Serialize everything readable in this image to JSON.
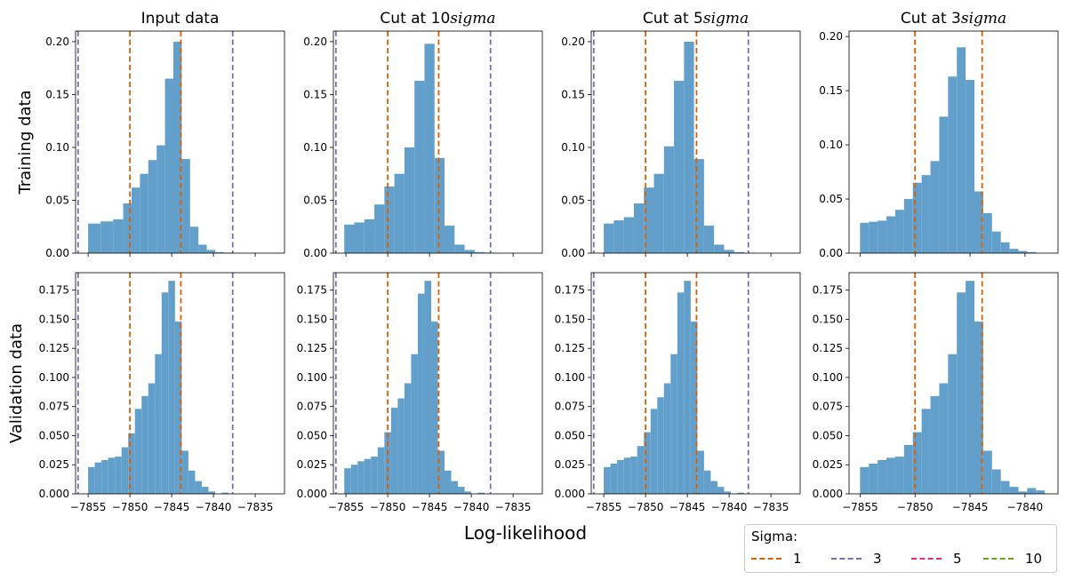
{
  "figure": {
    "row_labels": [
      "Training data",
      "Validation data"
    ],
    "xlabel": "Log-likelihood",
    "legend": {
      "title": "Sigma:",
      "entries": [
        {
          "label": "1",
          "color": "#d95f02"
        },
        {
          "label": "3",
          "color": "#7570b3"
        },
        {
          "label": "5",
          "color": "#e7298a"
        },
        {
          "label": "10",
          "color": "#66a61e"
        }
      ]
    },
    "bar_color": "#62a0cb"
  },
  "chart_data": [
    {
      "type": "bar",
      "panel_title": "Input data",
      "row": "Training data",
      "xlim": [
        -7856.5,
        -7831.5
      ],
      "ylim": [
        0,
        0.21
      ],
      "yticks": [
        0.0,
        0.05,
        0.1,
        0.15,
        0.2
      ],
      "xticks": [],
      "bin_edges": [
        -7855.0,
        -7853.5,
        -7852.0,
        -7850.8,
        -7849.8,
        -7848.8,
        -7847.8,
        -7846.8,
        -7845.8,
        -7844.8,
        -7843.8,
        -7842.8,
        -7841.8,
        -7840.8,
        -7839.8,
        -7838.8,
        -7837.8
      ],
      "values": [
        0.028,
        0.03,
        0.032,
        0.047,
        0.062,
        0.075,
        0.088,
        0.102,
        0.165,
        0.2,
        0.089,
        0.025,
        0.008,
        0.003,
        0.001,
        0.0005
      ],
      "vlines": [
        {
          "x": -7856.2,
          "sigma": "3"
        },
        {
          "x": -7850.0,
          "sigma": "1"
        },
        {
          "x": -7843.9,
          "sigma": "1"
        },
        {
          "x": -7837.7,
          "sigma": "3"
        }
      ]
    },
    {
      "type": "bar",
      "panel_title": "Cut at 10$sigma$",
      "row": "Training data",
      "xlim": [
        -7856.5,
        -7831.5
      ],
      "ylim": [
        0,
        0.21
      ],
      "yticks": [
        0.0,
        0.05,
        0.1,
        0.15,
        0.2
      ],
      "xticks": [],
      "bin_edges": [
        -7855.2,
        -7854.0,
        -7852.8,
        -7851.6,
        -7850.4,
        -7849.2,
        -7848.0,
        -7846.8,
        -7845.6,
        -7844.4,
        -7843.2,
        -7842.0,
        -7840.8,
        -7839.6,
        -7838.4,
        -7837.2
      ],
      "values": [
        0.027,
        0.029,
        0.032,
        0.046,
        0.063,
        0.075,
        0.1,
        0.163,
        0.198,
        0.09,
        0.026,
        0.008,
        0.003,
        0.001,
        0.0005
      ],
      "vlines": [
        {
          "x": -7856.2,
          "sigma": "3"
        },
        {
          "x": -7850.0,
          "sigma": "1"
        },
        {
          "x": -7843.9,
          "sigma": "1"
        },
        {
          "x": -7837.7,
          "sigma": "3"
        }
      ]
    },
    {
      "type": "bar",
      "panel_title": "Cut at 5$sigma$",
      "row": "Training data",
      "xlim": [
        -7856.5,
        -7831.5
      ],
      "ylim": [
        0,
        0.21
      ],
      "yticks": [
        0.0,
        0.05,
        0.1,
        0.15,
        0.2
      ],
      "xticks": [],
      "bin_edges": [
        -7855.0,
        -7853.8,
        -7852.6,
        -7851.4,
        -7850.2,
        -7849.0,
        -7847.8,
        -7846.6,
        -7845.4,
        -7844.2,
        -7843.0,
        -7841.8,
        -7840.6,
        -7839.4,
        -7838.2
      ],
      "values": [
        0.028,
        0.031,
        0.034,
        0.047,
        0.062,
        0.075,
        0.101,
        0.163,
        0.2,
        0.089,
        0.026,
        0.008,
        0.003,
        0.001
      ],
      "vlines": [
        {
          "x": -7856.2,
          "sigma": "3"
        },
        {
          "x": -7850.0,
          "sigma": "1"
        },
        {
          "x": -7843.9,
          "sigma": "1"
        },
        {
          "x": -7837.7,
          "sigma": "3"
        }
      ]
    },
    {
      "type": "bar",
      "panel_title": "Cut at 3$sigma$",
      "row": "Training data",
      "xlim": [
        -7856.0,
        -7837.0
      ],
      "ylim": [
        0,
        0.205
      ],
      "yticks": [
        0.0,
        0.05,
        0.1,
        0.15,
        0.2
      ],
      "xticks": [],
      "bin_edges": [
        -7855.0,
        -7854.2,
        -7853.4,
        -7852.6,
        -7851.8,
        -7851.0,
        -7850.2,
        -7849.4,
        -7848.6,
        -7847.8,
        -7847.0,
        -7846.2,
        -7845.4,
        -7844.6,
        -7843.8,
        -7843.0,
        -7842.2,
        -7841.4,
        -7840.6,
        -7839.8,
        -7839.0
      ],
      "values": [
        0.028,
        0.029,
        0.03,
        0.034,
        0.04,
        0.05,
        0.065,
        0.072,
        0.085,
        0.126,
        0.163,
        0.19,
        0.16,
        0.057,
        0.037,
        0.02,
        0.01,
        0.004,
        0.002,
        0.001
      ],
      "vlines": [
        {
          "x": -7850.0,
          "sigma": "1"
        },
        {
          "x": -7843.9,
          "sigma": "1"
        }
      ]
    },
    {
      "type": "bar",
      "panel_title": "",
      "row": "Validation data",
      "xlim": [
        -7856.5,
        -7831.5
      ],
      "ylim": [
        0,
        0.19
      ],
      "yticks": [
        0.0,
        0.025,
        0.05,
        0.075,
        0.1,
        0.125,
        0.15,
        0.175
      ],
      "xticks": [
        -7855,
        -7850,
        -7845,
        -7840,
        -7835
      ],
      "bin_edges": [
        -7855.0,
        -7854.2,
        -7853.4,
        -7852.6,
        -7851.8,
        -7851.0,
        -7850.2,
        -7849.4,
        -7848.6,
        -7847.8,
        -7847.0,
        -7846.2,
        -7845.4,
        -7844.6,
        -7843.8,
        -7843.0,
        -7842.2,
        -7841.4,
        -7840.6,
        -7839.8,
        -7839.0,
        -7838.2,
        -7837.4
      ],
      "values": [
        0.023,
        0.027,
        0.029,
        0.031,
        0.032,
        0.04,
        0.052,
        0.073,
        0.084,
        0.095,
        0.12,
        0.173,
        0.183,
        0.148,
        0.037,
        0.02,
        0.011,
        0.006,
        0.002,
        0.0,
        0.001,
        0.0
      ],
      "vlines": [
        {
          "x": -7856.2,
          "sigma": "3"
        },
        {
          "x": -7850.0,
          "sigma": "1"
        },
        {
          "x": -7843.9,
          "sigma": "1"
        },
        {
          "x": -7837.7,
          "sigma": "3"
        }
      ]
    },
    {
      "type": "bar",
      "panel_title": "",
      "row": "Validation data",
      "xlim": [
        -7856.5,
        -7831.5
      ],
      "ylim": [
        0,
        0.19
      ],
      "yticks": [
        0.0,
        0.025,
        0.05,
        0.075,
        0.1,
        0.125,
        0.15,
        0.175
      ],
      "xticks": [
        -7855,
        -7850,
        -7845,
        -7840,
        -7835
      ],
      "bin_edges": [
        -7855.2,
        -7854.4,
        -7853.6,
        -7852.8,
        -7852.0,
        -7851.2,
        -7850.4,
        -7849.6,
        -7848.8,
        -7848.0,
        -7847.2,
        -7846.4,
        -7845.6,
        -7844.8,
        -7844.0,
        -7843.2,
        -7842.4,
        -7841.6,
        -7840.8,
        -7840.0,
        -7839.2,
        -7838.4,
        -7837.6
      ],
      "values": [
        0.022,
        0.025,
        0.028,
        0.03,
        0.032,
        0.04,
        0.053,
        0.074,
        0.082,
        0.095,
        0.12,
        0.172,
        0.183,
        0.148,
        0.037,
        0.02,
        0.011,
        0.006,
        0.002,
        0.0,
        0.001,
        0.0
      ],
      "vlines": [
        {
          "x": -7856.2,
          "sigma": "3"
        },
        {
          "x": -7850.0,
          "sigma": "1"
        },
        {
          "x": -7843.9,
          "sigma": "1"
        },
        {
          "x": -7837.7,
          "sigma": "3"
        }
      ]
    },
    {
      "type": "bar",
      "panel_title": "",
      "row": "Validation data",
      "xlim": [
        -7856.5,
        -7831.5
      ],
      "ylim": [
        0,
        0.19
      ],
      "yticks": [
        0.0,
        0.025,
        0.05,
        0.075,
        0.1,
        0.125,
        0.15,
        0.175
      ],
      "xticks": [
        -7855,
        -7850,
        -7845,
        -7840,
        -7835
      ],
      "bin_edges": [
        -7855.0,
        -7854.2,
        -7853.4,
        -7852.6,
        -7851.8,
        -7851.0,
        -7850.2,
        -7849.4,
        -7848.6,
        -7847.8,
        -7847.0,
        -7846.2,
        -7845.4,
        -7844.6,
        -7843.8,
        -7843.0,
        -7842.2,
        -7841.4,
        -7840.6,
        -7839.8,
        -7839.0,
        -7838.2
      ],
      "values": [
        0.023,
        0.026,
        0.029,
        0.031,
        0.032,
        0.041,
        0.053,
        0.073,
        0.083,
        0.095,
        0.12,
        0.173,
        0.183,
        0.148,
        0.037,
        0.02,
        0.011,
        0.006,
        0.002,
        0.0,
        0.001
      ],
      "vlines": [
        {
          "x": -7856.2,
          "sigma": "3"
        },
        {
          "x": -7850.0,
          "sigma": "1"
        },
        {
          "x": -7843.9,
          "sigma": "1"
        },
        {
          "x": -7837.7,
          "sigma": "3"
        }
      ]
    },
    {
      "type": "bar",
      "panel_title": "",
      "row": "Validation data",
      "xlim": [
        -7856.0,
        -7837.0
      ],
      "ylim": [
        0,
        0.19
      ],
      "yticks": [
        0.0,
        0.025,
        0.05,
        0.075,
        0.1,
        0.125,
        0.15,
        0.175
      ],
      "xticks": [
        -7855,
        -7850,
        -7845,
        -7840
      ],
      "bin_edges": [
        -7855.0,
        -7854.2,
        -7853.4,
        -7852.6,
        -7851.8,
        -7851.0,
        -7850.2,
        -7849.4,
        -7848.6,
        -7847.8,
        -7847.0,
        -7846.2,
        -7845.4,
        -7844.6,
        -7843.8,
        -7843.0,
        -7842.2,
        -7841.4,
        -7840.6,
        -7839.8,
        -7839.0,
        -7838.2
      ],
      "values": [
        0.023,
        0.026,
        0.029,
        0.031,
        0.032,
        0.042,
        0.053,
        0.073,
        0.084,
        0.095,
        0.12,
        0.173,
        0.183,
        0.148,
        0.037,
        0.021,
        0.011,
        0.006,
        0.002,
        0.005,
        0.003
      ],
      "vlines": [
        {
          "x": -7850.0,
          "sigma": "1"
        },
        {
          "x": -7843.9,
          "sigma": "1"
        }
      ]
    }
  ]
}
